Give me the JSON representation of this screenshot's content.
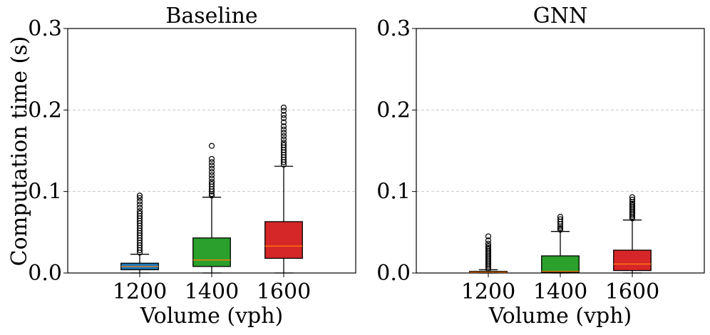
{
  "chart_data": [
    {
      "type": "box",
      "title": "Baseline",
      "xlabel": "Volume (vph)",
      "ylabel": "Computation time (s)",
      "ylim": [
        0.0,
        0.3
      ],
      "yticks": [
        0.0,
        0.1,
        0.2,
        0.3
      ],
      "ytick_labels": [
        "0.0",
        "0.1",
        "0.2",
        "0.3"
      ],
      "grid": "horizontal dashed",
      "categories": [
        "1200",
        "1400",
        "1600"
      ],
      "boxes": [
        {
          "category": "1200",
          "color": "#1f77b4",
          "whisker_low": 0.0,
          "q1": 0.004,
          "median": 0.008,
          "q3": 0.012,
          "whisker_high": 0.023,
          "outliers": [
            0.025,
            0.028,
            0.031,
            0.034,
            0.037,
            0.04,
            0.043,
            0.046,
            0.049,
            0.052,
            0.055,
            0.058,
            0.061,
            0.064,
            0.067,
            0.07,
            0.073,
            0.076,
            0.08,
            0.084,
            0.088,
            0.092,
            0.095
          ]
        },
        {
          "category": "1400",
          "color": "#2ca02c",
          "whisker_low": 0.0,
          "q1": 0.008,
          "median": 0.016,
          "q3": 0.043,
          "whisker_high": 0.093,
          "outliers": [
            0.095,
            0.097,
            0.1,
            0.103,
            0.106,
            0.109,
            0.112,
            0.116,
            0.12,
            0.124,
            0.128,
            0.132,
            0.136,
            0.14,
            0.156
          ]
        },
        {
          "category": "1600",
          "color": "#d62728",
          "whisker_low": 0.0,
          "q1": 0.018,
          "median": 0.033,
          "q3": 0.063,
          "whisker_high": 0.131,
          "outliers": [
            0.133,
            0.136,
            0.139,
            0.142,
            0.145,
            0.148,
            0.151,
            0.154,
            0.157,
            0.16,
            0.164,
            0.168,
            0.172,
            0.176,
            0.18,
            0.185,
            0.19,
            0.194,
            0.199,
            0.203
          ]
        }
      ]
    },
    {
      "type": "box",
      "title": "GNN",
      "xlabel": "Volume (vph)",
      "ylabel": "",
      "ylim": [
        0.0,
        0.3
      ],
      "yticks": [
        0.0,
        0.1,
        0.2,
        0.3
      ],
      "ytick_labels": [
        "0.0",
        "0.1",
        "0.2",
        "0.3"
      ],
      "grid": "horizontal dashed",
      "categories": [
        "1200",
        "1400",
        "1600"
      ],
      "boxes": [
        {
          "category": "1200",
          "color": "#ff7f0e",
          "whisker_low": 0.0,
          "q1": 0.0005,
          "median": 0.001,
          "q3": 0.002,
          "whisker_high": 0.004,
          "outliers": [
            0.005,
            0.007,
            0.009,
            0.011,
            0.013,
            0.015,
            0.017,
            0.019,
            0.021,
            0.023,
            0.025,
            0.027,
            0.029,
            0.031,
            0.033,
            0.036,
            0.04,
            0.045
          ]
        },
        {
          "category": "1400",
          "color": "#2ca02c",
          "whisker_low": 0.0,
          "q1": 0.001,
          "median": 0.002,
          "q3": 0.021,
          "whisker_high": 0.051,
          "outliers": [
            0.053,
            0.055,
            0.057,
            0.06,
            0.063,
            0.066,
            0.069
          ]
        },
        {
          "category": "1600",
          "color": "#d62728",
          "whisker_low": 0.0,
          "q1": 0.003,
          "median": 0.011,
          "q3": 0.028,
          "whisker_high": 0.065,
          "outliers": [
            0.067,
            0.069,
            0.071,
            0.073,
            0.075,
            0.077,
            0.079,
            0.081,
            0.083,
            0.085,
            0.087,
            0.09,
            0.093
          ]
        }
      ]
    }
  ],
  "style": {
    "median_color": "#ff7f0e",
    "grid_color": "#c8c8c8",
    "axis_color": "#000000"
  }
}
